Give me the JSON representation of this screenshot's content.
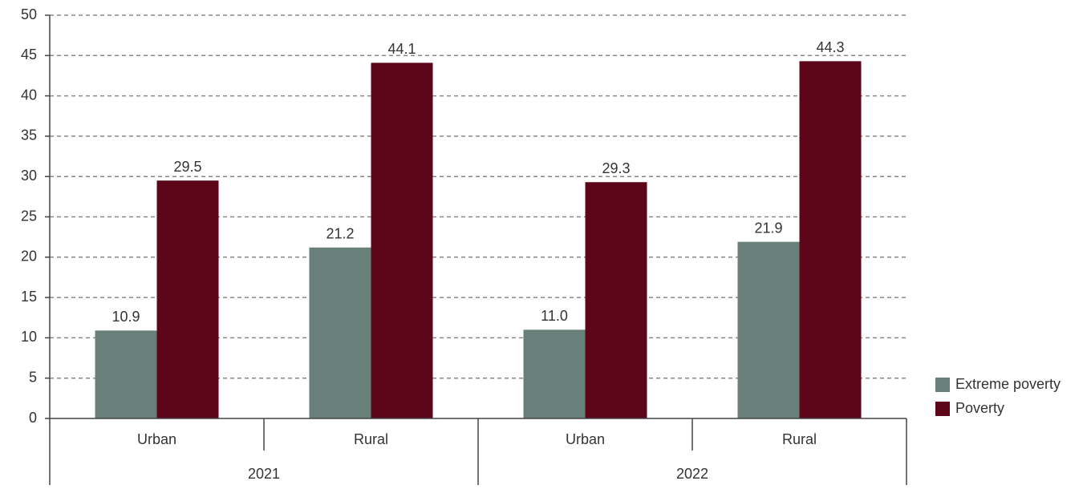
{
  "chart_data": {
    "type": "bar",
    "groups": [
      {
        "name": "2021",
        "categories": [
          "Urban",
          "Rural"
        ]
      },
      {
        "name": "2022",
        "categories": [
          "Urban",
          "Rural"
        ]
      }
    ],
    "series": [
      {
        "name": "Extreme poverty",
        "color": "#687f7a",
        "values": [
          10.9,
          21.2,
          11.0,
          21.9
        ],
        "value_labels": [
          "10.9",
          "21.2",
          "11.0",
          "21.9"
        ]
      },
      {
        "name": "Poverty",
        "color": "#5e0619",
        "values": [
          29.5,
          44.1,
          29.3,
          44.3
        ],
        "value_labels": [
          "29.5",
          "44.1",
          "29.3",
          "44.3"
        ]
      }
    ],
    "ylim": [
      0,
      50
    ],
    "yticks": [
      0,
      5,
      10,
      15,
      20,
      25,
      30,
      35,
      40,
      45,
      50
    ],
    "grid": true,
    "legend": "lower right"
  }
}
